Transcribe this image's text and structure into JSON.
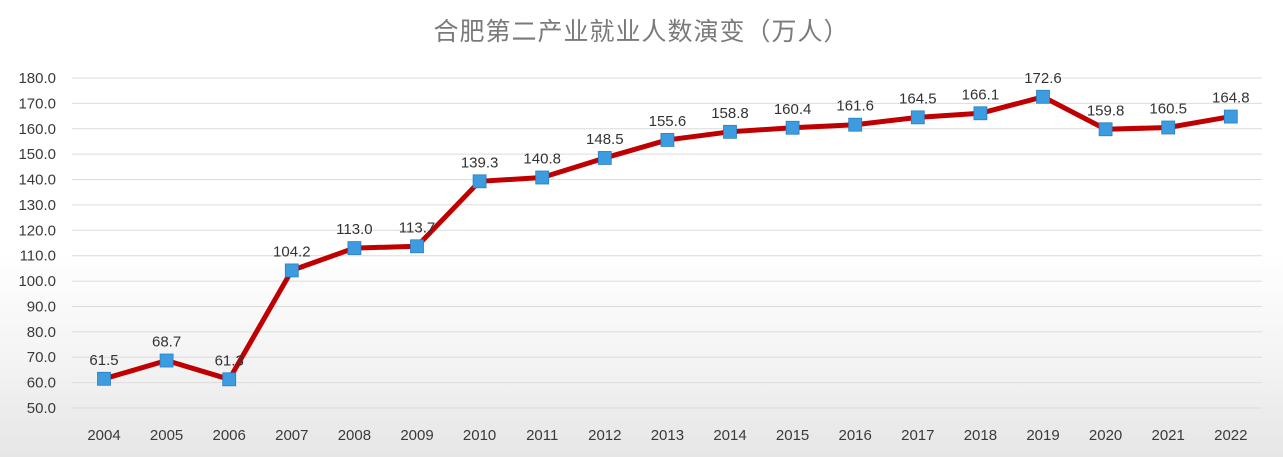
{
  "chart_data": {
    "type": "line",
    "title": "合肥第二产业就业人数演变（万人）",
    "xlabel": "",
    "ylabel": "",
    "categories": [
      "2004",
      "2005",
      "2006",
      "2007",
      "2008",
      "2009",
      "2010",
      "2011",
      "2012",
      "2013",
      "2014",
      "2015",
      "2016",
      "2017",
      "2018",
      "2019",
      "2020",
      "2021",
      "2022"
    ],
    "series": [
      {
        "values": [
          61.5,
          68.7,
          61.3,
          104.2,
          113.0,
          113.7,
          139.3,
          140.8,
          148.5,
          155.6,
          158.8,
          160.4,
          161.6,
          164.5,
          166.1,
          172.6,
          159.8,
          160.5,
          164.8
        ],
        "labels": [
          "61.5",
          "68.7",
          "61.3",
          "104.2",
          "113.0",
          "113.7",
          "139.3",
          "140.8",
          "148.5",
          "155.6",
          "158.8",
          "160.4",
          "161.6",
          "164.5",
          "166.1",
          "172.6",
          "159.8",
          "160.5",
          "164.8"
        ]
      }
    ],
    "ylim": [
      50,
      180
    ],
    "yticks": [
      "50.0",
      "60.0",
      "70.0",
      "80.0",
      "90.0",
      "100.0",
      "110.0",
      "120.0",
      "130.0",
      "140.0",
      "150.0",
      "160.0",
      "170.0",
      "180.0"
    ],
    "grid": true,
    "line_color": "#c00000",
    "marker_color": "#3d9be0",
    "legend": "none"
  }
}
